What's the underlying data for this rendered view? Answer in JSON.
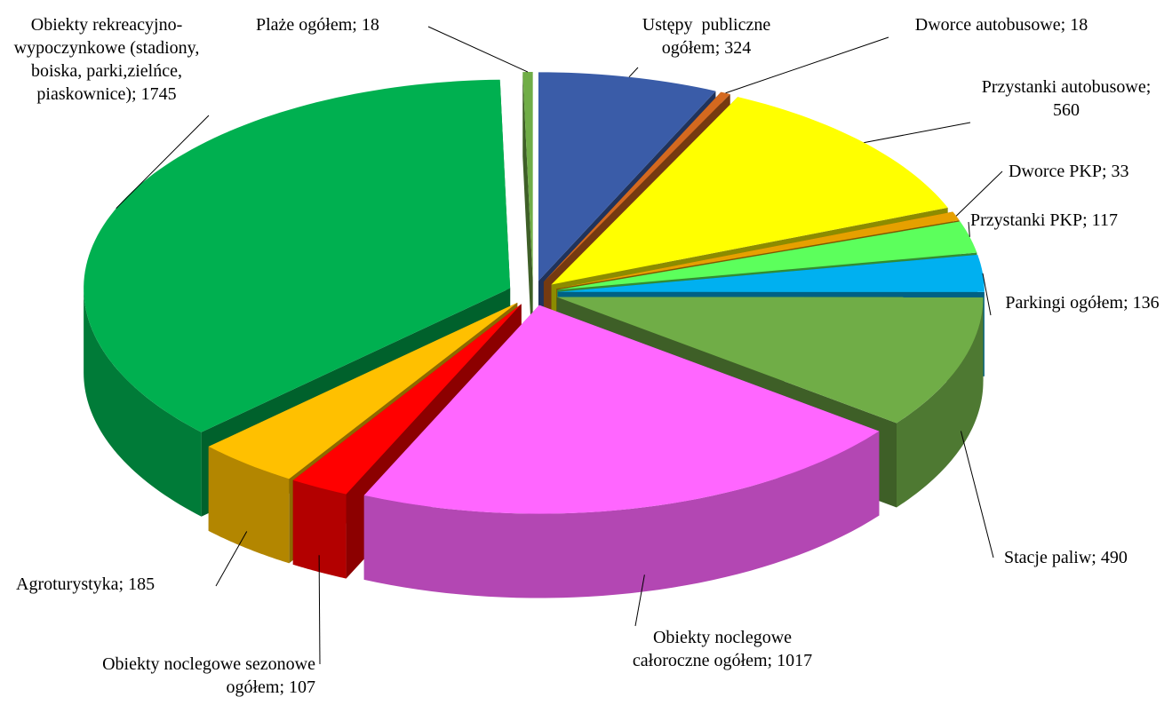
{
  "chart_data": {
    "type": "pie",
    "value_labels": [
      "Ustępy  publiczne ogółem; 324",
      "Dworce autobusowe; 18",
      "Przystanki autobusowe; 560",
      "Dworce PKP; 33",
      "Przystanki PKP; 117",
      "Parkingi ogółem; 136",
      "Stacje paliw; 490",
      "Obiekty noclegowe całoroczne ogółem; 1017",
      "Obiekty noclegowe sezonowe ogółem; 107",
      "Agroturystyka; 185",
      "Obiekty rekreacyjno-wypoczynkowe (stadiony, boiska, parki,zielńce, piaskownice); 1745",
      "Plaże ogółem; 18"
    ],
    "values": [
      324,
      18,
      560,
      33,
      117,
      136,
      490,
      1017,
      107,
      185,
      1745,
      18
    ],
    "colors": [
      "#3a5ca8",
      "#d4691f",
      "#ffff00",
      "#e6a000",
      "#5cff5c",
      "#00b0f0",
      "#70ad47",
      "#ff66ff",
      "#ff0000",
      "#ffc000",
      "#00b050",
      "#70ad47"
    ]
  }
}
